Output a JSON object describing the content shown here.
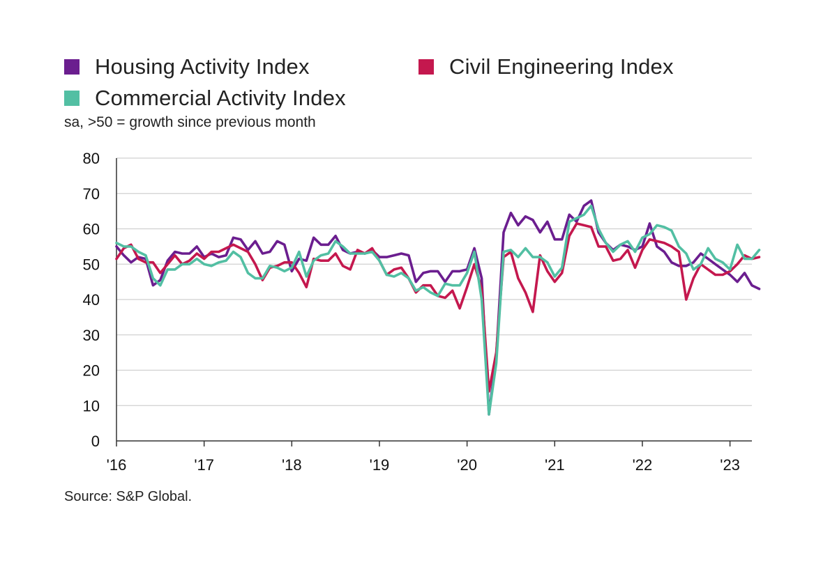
{
  "legend": [
    {
      "label": "Housing Activity Index",
      "color": "#6b1e8f"
    },
    {
      "label": "Civil Engineering Index",
      "color": "#c4184e"
    },
    {
      "label": "Commercial Activity Index",
      "color": "#52bfa3"
    }
  ],
  "subtitle": "sa, >50 = growth since previous month",
  "source": "Source: S&P Global.",
  "chart_data": {
    "type": "line",
    "title": "",
    "xlabel": "",
    "ylabel": "",
    "ylim": [
      0,
      80
    ],
    "yticks": [
      "0",
      "10",
      "20",
      "30",
      "40",
      "50",
      "60",
      "70",
      "80"
    ],
    "xticks": [
      "'16",
      "'17",
      "'18",
      "'19",
      "'20",
      "'21",
      "'22",
      "'23"
    ],
    "x_start": "2016-01",
    "x_end": "2023-04",
    "grid": "horizontal",
    "legend_position": "top",
    "series": [
      {
        "name": "Housing Activity Index",
        "color": "#6b1e8f",
        "values": [
          55.0,
          52.5,
          50.5,
          52.0,
          51.5,
          44.0,
          45.5,
          51.0,
          53.5,
          53.0,
          53.0,
          55.0,
          52.0,
          53.0,
          52.0,
          52.5,
          57.5,
          57.0,
          54.0,
          56.5,
          53.0,
          53.5,
          56.5,
          55.5,
          48.0,
          51.5,
          51.0,
          57.5,
          55.5,
          55.5,
          58.0,
          54.0,
          53.0,
          53.5,
          53.0,
          54.0,
          52.0,
          52.0,
          52.5,
          53.0,
          52.5,
          45.0,
          47.5,
          48.0,
          48.0,
          45.0,
          48.0,
          48.0,
          48.5,
          54.5,
          46.0,
          7.5,
          24.0,
          59.0,
          64.5,
          61.0,
          63.5,
          62.5,
          59.0,
          62.0,
          57.0,
          57.0,
          64.0,
          62.0,
          66.5,
          68.0,
          59.0,
          56.0,
          54.0,
          55.5,
          55.0,
          54.0,
          55.0,
          61.5,
          55.0,
          53.5,
          50.5,
          49.5,
          49.5,
          50.5,
          53.0,
          51.5,
          50.0,
          48.5,
          47.0,
          45.0,
          47.5,
          44.0,
          43.0
        ]
      },
      {
        "name": "Civil Engineering Index",
        "color": "#c4184e",
        "values": [
          51.5,
          54.5,
          55.5,
          51.5,
          50.5,
          50.5,
          47.5,
          50.0,
          52.5,
          50.0,
          51.0,
          53.0,
          51.5,
          53.5,
          53.5,
          54.5,
          55.5,
          54.5,
          53.5,
          50.0,
          45.5,
          49.0,
          49.5,
          50.5,
          50.5,
          47.5,
          43.5,
          51.5,
          51.0,
          51.0,
          53.0,
          49.5,
          48.5,
          54.0,
          53.0,
          54.5,
          51.0,
          47.0,
          48.5,
          49.0,
          46.0,
          42.0,
          44.0,
          44.0,
          41.0,
          40.5,
          42.5,
          37.5,
          43.5,
          50.0,
          43.0,
          14.0,
          25.0,
          52.0,
          53.5,
          46.0,
          42.0,
          36.5,
          52.5,
          48.0,
          45.0,
          47.5,
          58.0,
          61.5,
          61.0,
          60.5,
          55.0,
          55.0,
          51.0,
          51.5,
          54.0,
          49.0,
          54.0,
          57.0,
          56.5,
          56.0,
          55.0,
          53.5,
          40.0,
          46.0,
          50.0,
          48.5,
          47.0,
          47.0,
          48.0,
          50.0,
          52.5,
          51.5,
          52.0
        ]
      },
      {
        "name": "Commercial Activity Index",
        "color": "#52bfa3",
        "values": [
          56.0,
          55.0,
          55.0,
          53.5,
          52.5,
          46.0,
          44.0,
          48.5,
          48.5,
          50.0,
          50.0,
          51.5,
          50.0,
          49.5,
          50.5,
          51.0,
          53.5,
          52.0,
          47.5,
          46.0,
          46.0,
          49.5,
          49.0,
          48.0,
          49.0,
          53.5,
          46.5,
          51.0,
          52.5,
          53.0,
          56.5,
          55.0,
          53.0,
          53.0,
          53.0,
          53.5,
          51.0,
          47.0,
          46.5,
          47.5,
          46.0,
          42.5,
          43.5,
          42.0,
          41.0,
          44.5,
          44.0,
          44.0,
          47.5,
          53.5,
          40.0,
          7.5,
          22.0,
          53.5,
          54.0,
          52.0,
          54.5,
          52.0,
          52.0,
          50.5,
          46.5,
          49.0,
          62.0,
          63.0,
          64.0,
          66.5,
          60.0,
          56.0,
          53.5,
          55.5,
          56.5,
          53.5,
          57.5,
          58.5,
          61.0,
          60.5,
          59.5,
          55.0,
          53.0,
          48.5,
          50.0,
          54.5,
          51.5,
          50.5,
          48.5,
          55.5,
          51.5,
          51.5,
          54.0
        ]
      }
    ]
  }
}
